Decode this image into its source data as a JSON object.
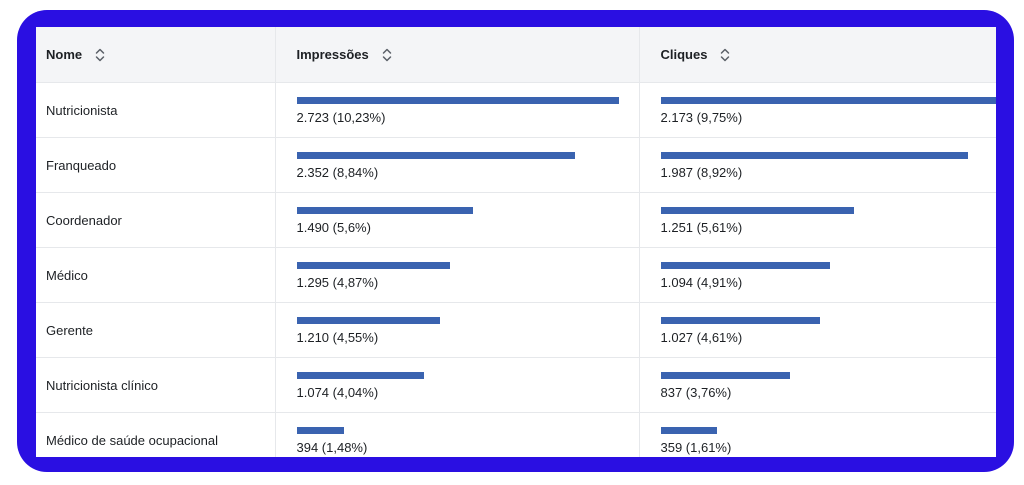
{
  "table": {
    "columns": [
      {
        "label": "Nome",
        "sort_icon": "sort-up-down-icon"
      },
      {
        "label": "Impressões",
        "sort_icon": "sort-up-down-icon"
      },
      {
        "label": "Cliques",
        "sort_icon": "sort-up-down-icon"
      }
    ],
    "rows": [
      {
        "name": "Nutricionista",
        "impressions": {
          "value": 2723,
          "text": "2.723 (10,23%)"
        },
        "clicks": {
          "value": 2173,
          "text": "2.173 (9,75%)"
        }
      },
      {
        "name": "Franqueado",
        "impressions": {
          "value": 2352,
          "text": "2.352 (8,84%)"
        },
        "clicks": {
          "value": 1987,
          "text": "1.987 (8,92%)"
        }
      },
      {
        "name": "Coordenador",
        "impressions": {
          "value": 1490,
          "text": "1.490 (5,6%)"
        },
        "clicks": {
          "value": 1251,
          "text": "1.251 (5,61%)"
        }
      },
      {
        "name": "Médico",
        "impressions": {
          "value": 1295,
          "text": "1.295 (4,87%)"
        },
        "clicks": {
          "value": 1094,
          "text": "1.094 (4,91%)"
        }
      },
      {
        "name": "Gerente",
        "impressions": {
          "value": 1210,
          "text": "1.210 (4,55%)"
        },
        "clicks": {
          "value": 1027,
          "text": "1.027 (4,61%)"
        }
      },
      {
        "name": "Nutricionista clínico",
        "impressions": {
          "value": 1074,
          "text": "1.074 (4,04%)"
        },
        "clicks": {
          "value": 837,
          "text": "837 (3,76%)"
        }
      },
      {
        "name": "Médico de saúde ocupacional",
        "impressions": {
          "value": 394,
          "text": "394 (1,48%)"
        },
        "clicks": {
          "value": 359,
          "text": "359 (1,61%)"
        }
      }
    ]
  },
  "colors": {
    "frame": "#2a0fe2",
    "bar": "#3a63b0",
    "header_bg": "#f4f5f7"
  }
}
